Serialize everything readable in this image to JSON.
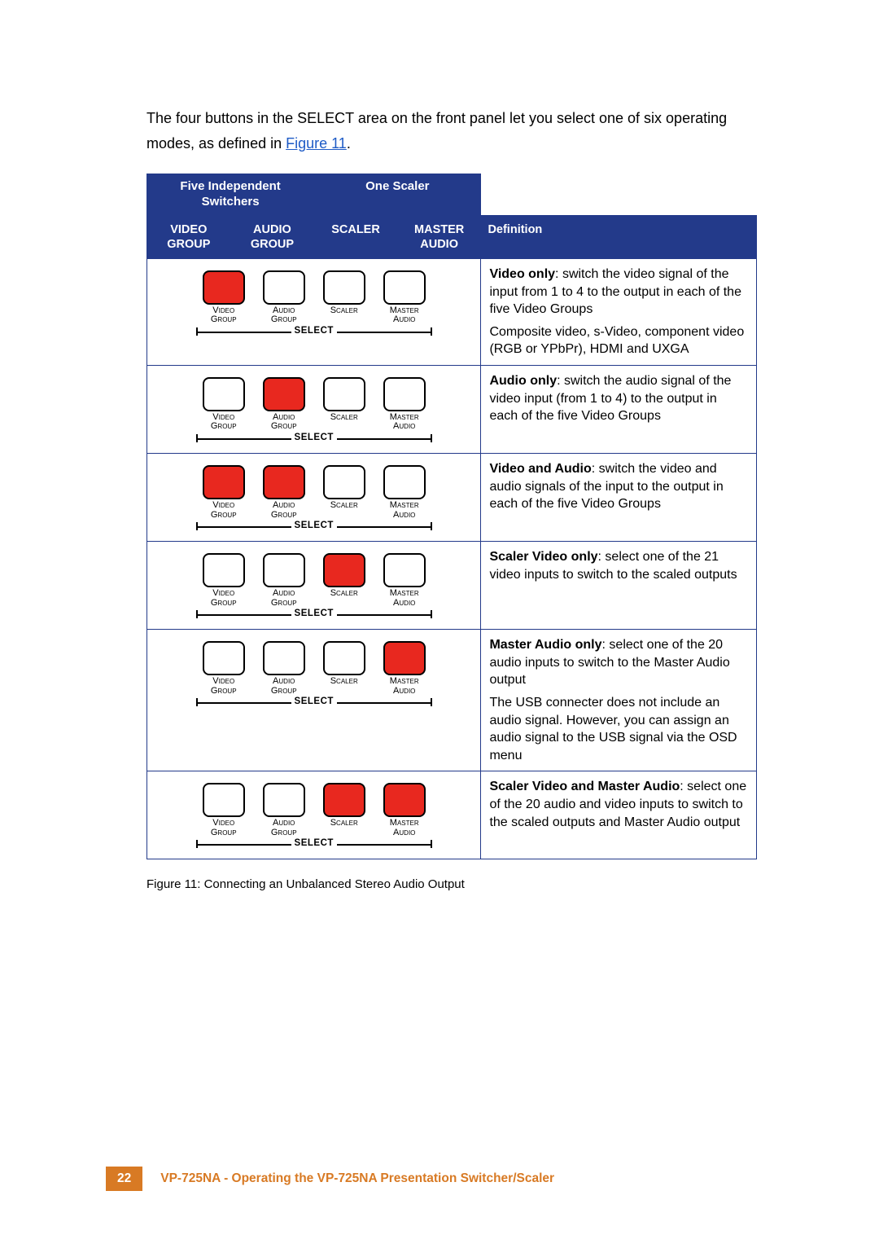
{
  "intro": {
    "text_before": "The four buttons in the SELECT area on the front panel let you select one of six operating modes, as defined in ",
    "link_text": "Figure 11",
    "text_after": "."
  },
  "table": {
    "header_row1": {
      "five_independent": "Five Independent Switchers",
      "one_scaler": "One Scaler"
    },
    "header_row2": {
      "video_group": "VIDEO GROUP",
      "audio_group": "AUDIO GROUP",
      "scaler": "SCALER",
      "master_audio": "MASTER AUDIO",
      "definition": "Definition"
    },
    "button_labels": {
      "video_top": "Video",
      "video_bot": "Group",
      "audio_top": "Audio",
      "audio_bot": "Group",
      "scaler_top": "Scaler",
      "scaler_bot": "",
      "master_top": "Master",
      "master_bot": "Audio",
      "select": "SELECT"
    },
    "rows": [
      {
        "states": [
          "on",
          "off",
          "off",
          "off"
        ],
        "def_bold": "Video only",
        "def_rest": ": switch the video signal of the input from 1 to 4 to the output in each of the five Video Groups",
        "def_sub": "Composite video, s-Video, component video (RGB or YPbPr), HDMI and UXGA"
      },
      {
        "states": [
          "off",
          "on",
          "off",
          "off"
        ],
        "def_bold": "Audio only",
        "def_rest": ": switch the audio signal of the video input (from 1 to 4) to the output in each of the five Video Groups",
        "def_sub": ""
      },
      {
        "states": [
          "on",
          "on",
          "off",
          "off"
        ],
        "def_bold": "Video and Audio",
        "def_rest": ": switch the video and audio signals of the input to the output in each of the five Video Groups",
        "def_sub": ""
      },
      {
        "states": [
          "off",
          "off",
          "on",
          "off"
        ],
        "def_bold": "Scaler Video only",
        "def_rest": ": select one of the 21 video inputs to switch to the scaled outputs",
        "def_sub": ""
      },
      {
        "states": [
          "off",
          "off",
          "off",
          "on"
        ],
        "def_bold": "Master Audio only",
        "def_rest": ": select one of the 20 audio inputs to switch to the Master Audio output",
        "def_sub": "The USB connecter does not include an audio signal. However, you can assign an audio signal to the USB signal via the OSD menu"
      },
      {
        "states": [
          "off",
          "off",
          "on",
          "on"
        ],
        "def_bold": "Scaler Video and Master Audio",
        "def_rest": ": select one of the 20 audio and video inputs to switch to the scaled outputs and Master Audio output",
        "def_sub": ""
      }
    ]
  },
  "caption": "Figure 11: Connecting an Unbalanced Stereo Audio Output",
  "footer": {
    "page": "22",
    "title": "VP-725NA - Operating the VP-725NA Presentation Switcher/Scaler"
  },
  "colors": {
    "header_bg": "#233a8a",
    "button_on": "#e8281f",
    "accent": "#d87a24",
    "link": "#1e5bc6"
  }
}
